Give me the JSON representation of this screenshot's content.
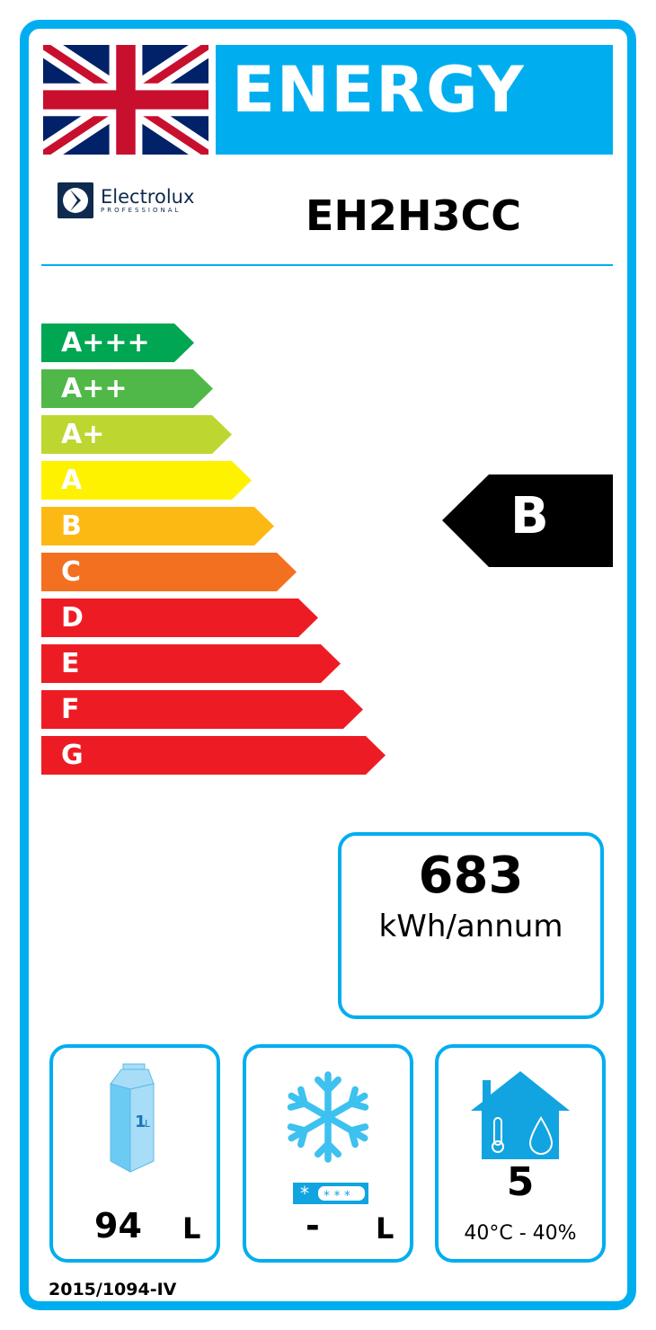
{
  "header": {
    "title": "ENERGY",
    "brand": "Electrolux",
    "brand_sub": "PROFESSIONAL",
    "model": "EH2H3CC",
    "flag": "united-kingdom-flag"
  },
  "scale": {
    "classes": [
      {
        "label": "A+++",
        "color": "#00A651"
      },
      {
        "label": "A++",
        "color": "#50B848"
      },
      {
        "label": "A+",
        "color": "#BED630"
      },
      {
        "label": "A",
        "color": "#FFF200"
      },
      {
        "label": "B",
        "color": "#FDB913"
      },
      {
        "label": "C",
        "color": "#F37021"
      },
      {
        "label": "D",
        "color": "#ED1C24"
      },
      {
        "label": "E",
        "color": "#ED1C24"
      },
      {
        "label": "F",
        "color": "#ED1C24"
      },
      {
        "label": "G",
        "color": "#ED1C24"
      }
    ],
    "rating": "B"
  },
  "consumption": {
    "value": "683",
    "unit": "kWh/annum"
  },
  "volume": {
    "icon": "milk-carton-icon",
    "value": "94",
    "unit": "L"
  },
  "frozen": {
    "icon": "snowflake-icon",
    "value": "-",
    "unit": "L"
  },
  "climate": {
    "icon": "house-climate-icon",
    "value": "5",
    "range": "40°C - 40%"
  },
  "footer": {
    "regulation": "2015/1094-IV"
  },
  "colors": {
    "accent": "#00AEEF",
    "indicator": "#000000"
  }
}
